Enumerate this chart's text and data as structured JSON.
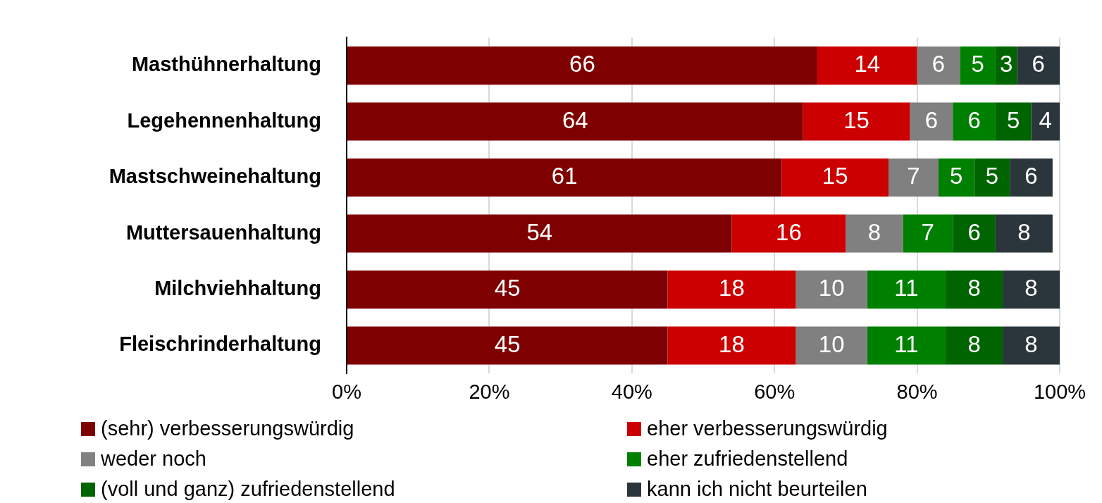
{
  "chart_data": {
    "type": "bar",
    "orientation": "horizontal",
    "stacked": true,
    "categories": [
      "Masthühnerhaltung",
      "Legehennenhaltung",
      "Mastschweinehaltung",
      "Muttersauenhaltung",
      "Milchviehhaltung",
      "Fleischrinderhaltung"
    ],
    "series": [
      {
        "name": "(sehr) verbesserungswürdig",
        "color": "#7f0000",
        "values": [
          66,
          64,
          61,
          54,
          45,
          45
        ]
      },
      {
        "name": "eher verbesserungswürdig",
        "color": "#cc0000",
        "values": [
          14,
          15,
          15,
          16,
          18,
          18
        ]
      },
      {
        "name": "weder noch",
        "color": "#808080",
        "values": [
          6,
          6,
          7,
          8,
          10,
          10
        ]
      },
      {
        "name": "eher zufriedenstellend",
        "color": "#008000",
        "values": [
          5,
          6,
          5,
          7,
          11,
          11
        ]
      },
      {
        "name": "(voll und ganz) zufriedenstellend",
        "color": "#006400",
        "values": [
          3,
          5,
          5,
          6,
          8,
          8
        ]
      },
      {
        "name": "kann ich nicht beurteilen",
        "color": "#2b363c",
        "values": [
          6,
          4,
          6,
          8,
          8,
          8
        ]
      }
    ],
    "xlim": [
      0,
      100
    ],
    "xticks": [
      {
        "value": 0,
        "label": "0%"
      },
      {
        "value": 20,
        "label": "20%"
      },
      {
        "value": 40,
        "label": "40%"
      },
      {
        "value": 60,
        "label": "60%"
      },
      {
        "value": 80,
        "label": "80%"
      },
      {
        "value": 100,
        "label": "100%"
      }
    ],
    "grid": "x",
    "legend": "bottom",
    "data_labels": true
  }
}
